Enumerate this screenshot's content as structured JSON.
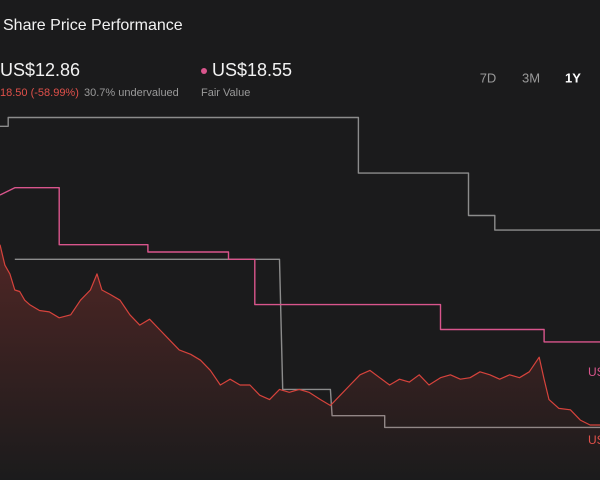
{
  "header": {
    "title": "Share Price Performance",
    "price": "US$12.86",
    "change": "18.50 (-58.99%)",
    "valuation": "30.7% undervalued",
    "fair_value": "US$18.55",
    "fair_value_label": "Fair Value"
  },
  "tabs": [
    "7D",
    "3M",
    "1Y"
  ],
  "active_tab": 2,
  "fair_value_tag": "US",
  "price_tag": "US",
  "chart_data": {
    "type": "line",
    "xlim": [
      0,
      365
    ],
    "ylim": [
      9.1,
      35.1
    ],
    "series": [
      {
        "color": "#8c8c8c",
        "x": [
          0,
          5,
          5,
          218,
          218,
          285,
          285,
          301,
          301,
          365
        ],
        "values": [
          33.3,
          33.3,
          33.9,
          33.9,
          30.1,
          30.1,
          27.2,
          27.2,
          26.2,
          26.2
        ]
      },
      {
        "color": "#8c8c8c",
        "x": [
          9,
          170,
          172,
          201,
          202,
          234,
          234,
          365
        ],
        "values": [
          24.2,
          24.2,
          15.3,
          15.3,
          13.5,
          13.5,
          12.7,
          12.7
        ]
      },
      {
        "color": "#d9558c",
        "x": [
          0,
          9,
          36,
          36,
          90,
          90,
          139,
          139,
          155,
          155,
          268,
          268,
          331,
          331,
          365
        ],
        "values": [
          28.6,
          29.1,
          29.1,
          25.2,
          25.2,
          24.7,
          24.7,
          24.2,
          24.2,
          21.1,
          21.1,
          19.4,
          19.4,
          18.55,
          18.55
        ]
      },
      {
        "color": "#d6433c",
        "area": true,
        "x": [
          0,
          3,
          6,
          9,
          12,
          15,
          18,
          24,
          30,
          36,
          43,
          49,
          55,
          59,
          62,
          67,
          73,
          79,
          85,
          91,
          97,
          103,
          109,
          116,
          122,
          128,
          134,
          140,
          146,
          152,
          158,
          164,
          170,
          176,
          182,
          188,
          195,
          201,
          207,
          213,
          219,
          225,
          231,
          237,
          243,
          249,
          255,
          261,
          268,
          274,
          280,
          286,
          292,
          298,
          304,
          310,
          316,
          322,
          328,
          331,
          334,
          340,
          347,
          353,
          359,
          365
        ],
        "values": [
          25.2,
          23.8,
          23.2,
          22.1,
          22.0,
          21.4,
          21.1,
          20.7,
          20.6,
          20.2,
          20.4,
          21.4,
          22.1,
          23.2,
          22.1,
          21.8,
          21.4,
          20.4,
          19.7,
          20.1,
          19.4,
          18.7,
          18.0,
          17.7,
          17.3,
          16.6,
          15.6,
          16.0,
          15.6,
          15.6,
          14.9,
          14.6,
          15.3,
          15.1,
          15.3,
          15.1,
          14.6,
          14.2,
          14.9,
          15.6,
          16.3,
          16.6,
          16.1,
          15.6,
          16.0,
          15.8,
          16.3,
          15.6,
          16.1,
          16.3,
          16.0,
          16.1,
          16.5,
          16.3,
          16.0,
          16.3,
          16.1,
          16.5,
          17.5,
          16.0,
          14.6,
          14.0,
          13.9,
          13.2,
          12.86,
          12.86
        ]
      }
    ]
  }
}
